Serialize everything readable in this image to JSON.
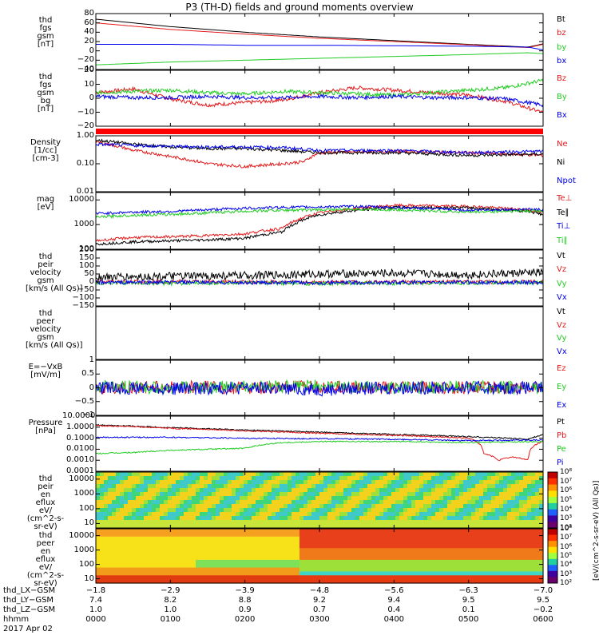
{
  "title": "P3 (TH-D) fields and ground moments overview",
  "colors": {
    "black": "#000000",
    "red": "#e41a1c",
    "green": "#22cc22",
    "blue": "#0000ee"
  },
  "chart_data": [
    {
      "type": "line",
      "id": "fgs_gsm",
      "ylabel": "thd\nfgs\ngsm\n[nT]",
      "ylim": [
        -40,
        80
      ],
      "yticks": [
        "80",
        "60",
        "40",
        "20",
        "0",
        "−20",
        "−40"
      ],
      "series": [
        {
          "name": "Bt",
          "color": "black",
          "x": [
            0,
            1,
            2,
            3,
            4,
            5,
            5.8,
            6
          ],
          "values": [
            68,
            52,
            40,
            30,
            22,
            14,
            8,
            15
          ]
        },
        {
          "name": "bz",
          "color": "red",
          "x": [
            0,
            1,
            2,
            3,
            4,
            5,
            5.8,
            6
          ],
          "values": [
            60,
            46,
            36,
            27,
            20,
            13,
            7,
            14
          ]
        },
        {
          "name": "by",
          "color": "green",
          "x": [
            0,
            1,
            2,
            3,
            4,
            5,
            5.8,
            6
          ],
          "values": [
            -30,
            -24,
            -20,
            -16,
            -12,
            -8,
            -4,
            -6
          ]
        },
        {
          "name": "bx",
          "color": "blue",
          "x": [
            0,
            1,
            2,
            3,
            4,
            5,
            5.8,
            6
          ],
          "values": [
            14,
            14,
            12,
            12,
            11,
            10,
            8,
            2
          ]
        }
      ]
    },
    {
      "type": "line",
      "id": "fgs_gsm_detr",
      "ylabel": "thd\nfgs\ngsm\nbg\n[nT]",
      "ylim": [
        -25,
        20
      ],
      "yticks": [
        "20",
        "10",
        "0",
        "−10",
        "−20"
      ],
      "series": [
        {
          "name": "Bz",
          "color": "red",
          "x": [
            0,
            0.5,
            1,
            1.5,
            2,
            2.5,
            3,
            3.5,
            4,
            4.5,
            5,
            5.5,
            6
          ],
          "values": [
            2,
            5,
            -3,
            -8,
            -6,
            -4,
            2,
            6,
            4,
            2,
            0,
            -5,
            -14
          ]
        },
        {
          "name": "By",
          "color": "green",
          "x": [
            0,
            0.5,
            1,
            1.5,
            2,
            2.5,
            3,
            3.5,
            4,
            4.5,
            5,
            5.5,
            6
          ],
          "values": [
            2,
            3,
            4,
            2,
            1,
            3,
            2,
            1,
            0,
            2,
            4,
            6,
            12
          ]
        },
        {
          "name": "Bx",
          "color": "blue",
          "x": [
            0,
            0.5,
            1,
            1.5,
            2,
            2.5,
            3,
            3.5,
            4,
            4.5,
            5,
            5.5,
            6
          ],
          "values": [
            -1,
            -2,
            -2,
            -1,
            -2,
            -2,
            -1,
            -2,
            -1,
            -2,
            -2,
            -3,
            -8
          ]
        }
      ]
    },
    {
      "type": "line",
      "id": "density",
      "ylabel": "Density\n[1/cc]\n[cm-3]",
      "scale": "log",
      "ylim": [
        0.01,
        1
      ],
      "yticks": [
        "1.00",
        "0.10",
        "0.01"
      ],
      "series": [
        {
          "name": "Ne",
          "color": "red",
          "x": [
            0,
            0.5,
            1,
            1.5,
            2,
            2.5,
            2.8,
            3,
            4,
            5,
            6
          ],
          "values": [
            0.6,
            0.3,
            0.18,
            0.1,
            0.08,
            0.1,
            0.12,
            0.25,
            0.28,
            0.25,
            0.2
          ]
        },
        {
          "name": "Ni",
          "color": "black",
          "x": [
            0,
            0.5,
            1,
            1.5,
            2,
            2.5,
            3,
            4,
            5,
            6
          ],
          "values": [
            0.7,
            0.5,
            0.4,
            0.35,
            0.35,
            0.3,
            0.25,
            0.25,
            0.2,
            0.22
          ]
        },
        {
          "name": "Npot",
          "color": "blue",
          "x": [
            0,
            0.5,
            1,
            1.5,
            2,
            2.5,
            3,
            4,
            5,
            6
          ],
          "values": [
            0.5,
            0.45,
            0.42,
            0.4,
            0.4,
            0.38,
            0.3,
            0.3,
            0.25,
            0.28
          ]
        }
      ]
    },
    {
      "type": "line",
      "id": "temps",
      "ylabel": "mag\n[eV]",
      "scale": "log",
      "ylim": [
        100,
        20000
      ],
      "yticks": [
        "10000",
        "1000",
        "100"
      ],
      "series": [
        {
          "name": "Te⊥",
          "color": "red",
          "x": [
            0,
            0.5,
            1,
            1.5,
            2,
            2.5,
            2.7,
            3,
            3.5,
            4,
            5,
            5.8,
            6
          ],
          "values": [
            220,
            300,
            320,
            360,
            420,
            700,
            1500,
            3000,
            4500,
            6000,
            5500,
            4000,
            3000
          ]
        },
        {
          "name": "Te∥",
          "color": "black",
          "x": [
            0,
            0.5,
            1,
            1.5,
            2,
            2.5,
            2.7,
            3,
            3.5,
            4,
            5,
            5.8,
            6
          ],
          "values": [
            160,
            200,
            220,
            240,
            280,
            500,
            1200,
            2500,
            3800,
            5000,
            4800,
            3500,
            2500
          ]
        },
        {
          "name": "Ti⊥",
          "color": "blue",
          "x": [
            0,
            0.5,
            1,
            1.5,
            2,
            2.5,
            3,
            3.5,
            4,
            5,
            5.8,
            6
          ],
          "values": [
            2800,
            3200,
            3400,
            4000,
            4600,
            5000,
            5200,
            5500,
            5000,
            3800,
            4200,
            4000
          ]
        },
        {
          "name": "Ti∥",
          "color": "green",
          "x": [
            0,
            0.5,
            1,
            1.5,
            2,
            2.5,
            3,
            3.5,
            4,
            5,
            5.8,
            6
          ],
          "values": [
            2000,
            2400,
            2600,
            3000,
            3500,
            3800,
            4000,
            4200,
            4000,
            3200,
            3600,
            3500
          ]
        }
      ]
    },
    {
      "type": "line",
      "id": "peir_vel",
      "ylabel": "thd\npeir\nvelocity\ngsm\n[km/s (All Qs)]",
      "ylim": [
        -150,
        200
      ],
      "yticks": [
        "200",
        "150",
        "100",
        "50",
        "0",
        "−50",
        "−100",
        "−150"
      ],
      "series": [
        {
          "name": "Vt",
          "color": "black",
          "x": [
            0,
            1,
            2,
            3,
            4,
            5,
            6
          ],
          "values": [
            30,
            35,
            40,
            50,
            55,
            45,
            60
          ]
        },
        {
          "name": "Vz",
          "color": "red",
          "x": [
            0,
            1,
            2,
            3,
            4,
            5,
            6
          ],
          "values": [
            0,
            2,
            0,
            -2,
            0,
            1,
            0
          ]
        },
        {
          "name": "Vy",
          "color": "green",
          "x": [
            0,
            1,
            2,
            3,
            4,
            5,
            6
          ],
          "values": [
            -5,
            -8,
            -6,
            -10,
            -8,
            -6,
            -5
          ]
        },
        {
          "name": "Vx",
          "color": "blue",
          "x": [
            0,
            1,
            2,
            3,
            4,
            5,
            6
          ],
          "values": [
            -3,
            -2,
            -4,
            -5,
            -3,
            -2,
            -4
          ]
        }
      ]
    },
    {
      "type": "line",
      "id": "peer_vel",
      "ylabel": "thd\npeer\nvelocity\ngsm\n[km/s (All Qs)]",
      "ylim": [
        -150,
        200
      ],
      "yticks": [],
      "series": [
        {
          "name": "Vt",
          "color": "black",
          "x": [],
          "values": []
        },
        {
          "name": "Vz",
          "color": "red",
          "x": [],
          "values": []
        },
        {
          "name": "Vy",
          "color": "green",
          "x": [],
          "values": []
        },
        {
          "name": "Vx",
          "color": "blue",
          "x": [],
          "values": []
        }
      ]
    },
    {
      "type": "line",
      "id": "efield",
      "ylabel": "E=−VxB\n[mV/m]",
      "ylim": [
        -1.5,
        1.5
      ],
      "yticks": [
        "1",
        "0.5",
        "0",
        "−0.5",
        "−1"
      ],
      "series": [
        {
          "name": "Ez",
          "color": "red",
          "x": [
            0,
            1,
            2,
            3,
            4,
            5,
            6
          ],
          "values": [
            0,
            0.05,
            0,
            0.05,
            0,
            0,
            0
          ]
        },
        {
          "name": "Ey",
          "color": "green",
          "x": [
            0,
            1,
            2,
            3,
            4,
            5,
            6
          ],
          "values": [
            0.05,
            0,
            0.05,
            0.1,
            0,
            0.05,
            0
          ]
        },
        {
          "name": "Ex",
          "color": "blue",
          "x": [
            0,
            1,
            2,
            3,
            4,
            5,
            6
          ],
          "values": [
            0,
            -0.05,
            0,
            -0.1,
            0,
            0,
            0
          ]
        }
      ]
    },
    {
      "type": "line",
      "id": "pressure",
      "ylabel": "Pressure\n[nPa]",
      "scale": "log",
      "ylim": [
        0.0001,
        10
      ],
      "yticks": [
        "10.0000",
        "1.0000",
        "0.1000",
        "0.0100",
        "0.0010",
        "0.0001"
      ],
      "series": [
        {
          "name": "Pt",
          "color": "black",
          "x": [
            0,
            1,
            2,
            3,
            4,
            5,
            5.8,
            6
          ],
          "values": [
            1.6,
            0.9,
            0.55,
            0.35,
            0.22,
            0.14,
            0.08,
            0.2
          ]
        },
        {
          "name": "Pb",
          "color": "red",
          "x": [
            0,
            1,
            2,
            3,
            4,
            5,
            5.2,
            5.4,
            5.6,
            5.8,
            6
          ],
          "values": [
            1.4,
            0.8,
            0.45,
            0.28,
            0.18,
            0.1,
            0.004,
            0.001,
            0.002,
            0.001,
            0.05
          ]
        },
        {
          "name": "Pe",
          "color": "green",
          "x": [
            0,
            0.5,
            1,
            1.5,
            2,
            2.5,
            3,
            4,
            5,
            6
          ],
          "values": [
            0.004,
            0.005,
            0.008,
            0.01,
            0.012,
            0.04,
            0.05,
            0.05,
            0.04,
            0.05
          ]
        },
        {
          "name": "Pi",
          "color": "blue",
          "x": [
            0,
            1,
            2,
            3,
            4,
            5,
            6
          ],
          "values": [
            0.12,
            0.12,
            0.1,
            0.09,
            0.08,
            0.06,
            0.07
          ]
        }
      ]
    },
    {
      "type": "heatmap",
      "id": "peir_en",
      "ylabel": "thd\npeir\nen\neflux\neV/\n(cm^2-s-\nsr-eV)",
      "scale": "log",
      "ylim": [
        5,
        30000
      ],
      "yticks": [
        "10000",
        "1000",
        "100",
        "10"
      ],
      "colorbar": {
        "label": "[eV/(cm^2-s-sr-eV) (All Qs)]",
        "ticks": [
          "10⁸",
          "10⁷",
          "10⁶",
          "10⁵",
          "10⁴",
          "10³",
          "10²"
        ]
      }
    },
    {
      "type": "heatmap",
      "id": "peer_en",
      "ylabel": "thd\npeer\nen\neflux\neV/\n(cm^2-s-\nsr-eV)",
      "scale": "log",
      "ylim": [
        5,
        30000
      ],
      "yticks": [
        "10000",
        "1000",
        "100",
        "10"
      ],
      "colorbar": {
        "label": "",
        "ticks": [
          "10⁸",
          "10⁷",
          "10⁶",
          "10⁵",
          "10⁴",
          "10³",
          "10²"
        ]
      }
    }
  ],
  "time_axis": {
    "ticks": [
      "0000",
      "0100",
      "0200",
      "0300",
      "0400",
      "0500",
      "0600"
    ],
    "date": "2017 Apr 02"
  },
  "ephemeris": {
    "labels": [
      "thd_LX−GSM",
      "thd_LY−GSM",
      "thd_LZ−GSM",
      "hhmm"
    ],
    "rows": [
      [
        "−1.8",
        "−2.9",
        "−3.9",
        "−4.8",
        "−5.6",
        "−6.3",
        "−7.0"
      ],
      [
        "7.4",
        "8.2",
        "8.8",
        "9.2",
        "9.4",
        "9.5",
        "9.5"
      ],
      [
        "1.0",
        "1.0",
        "0.9",
        "0.7",
        "0.4",
        "0.1",
        "−0.2"
      ]
    ]
  }
}
